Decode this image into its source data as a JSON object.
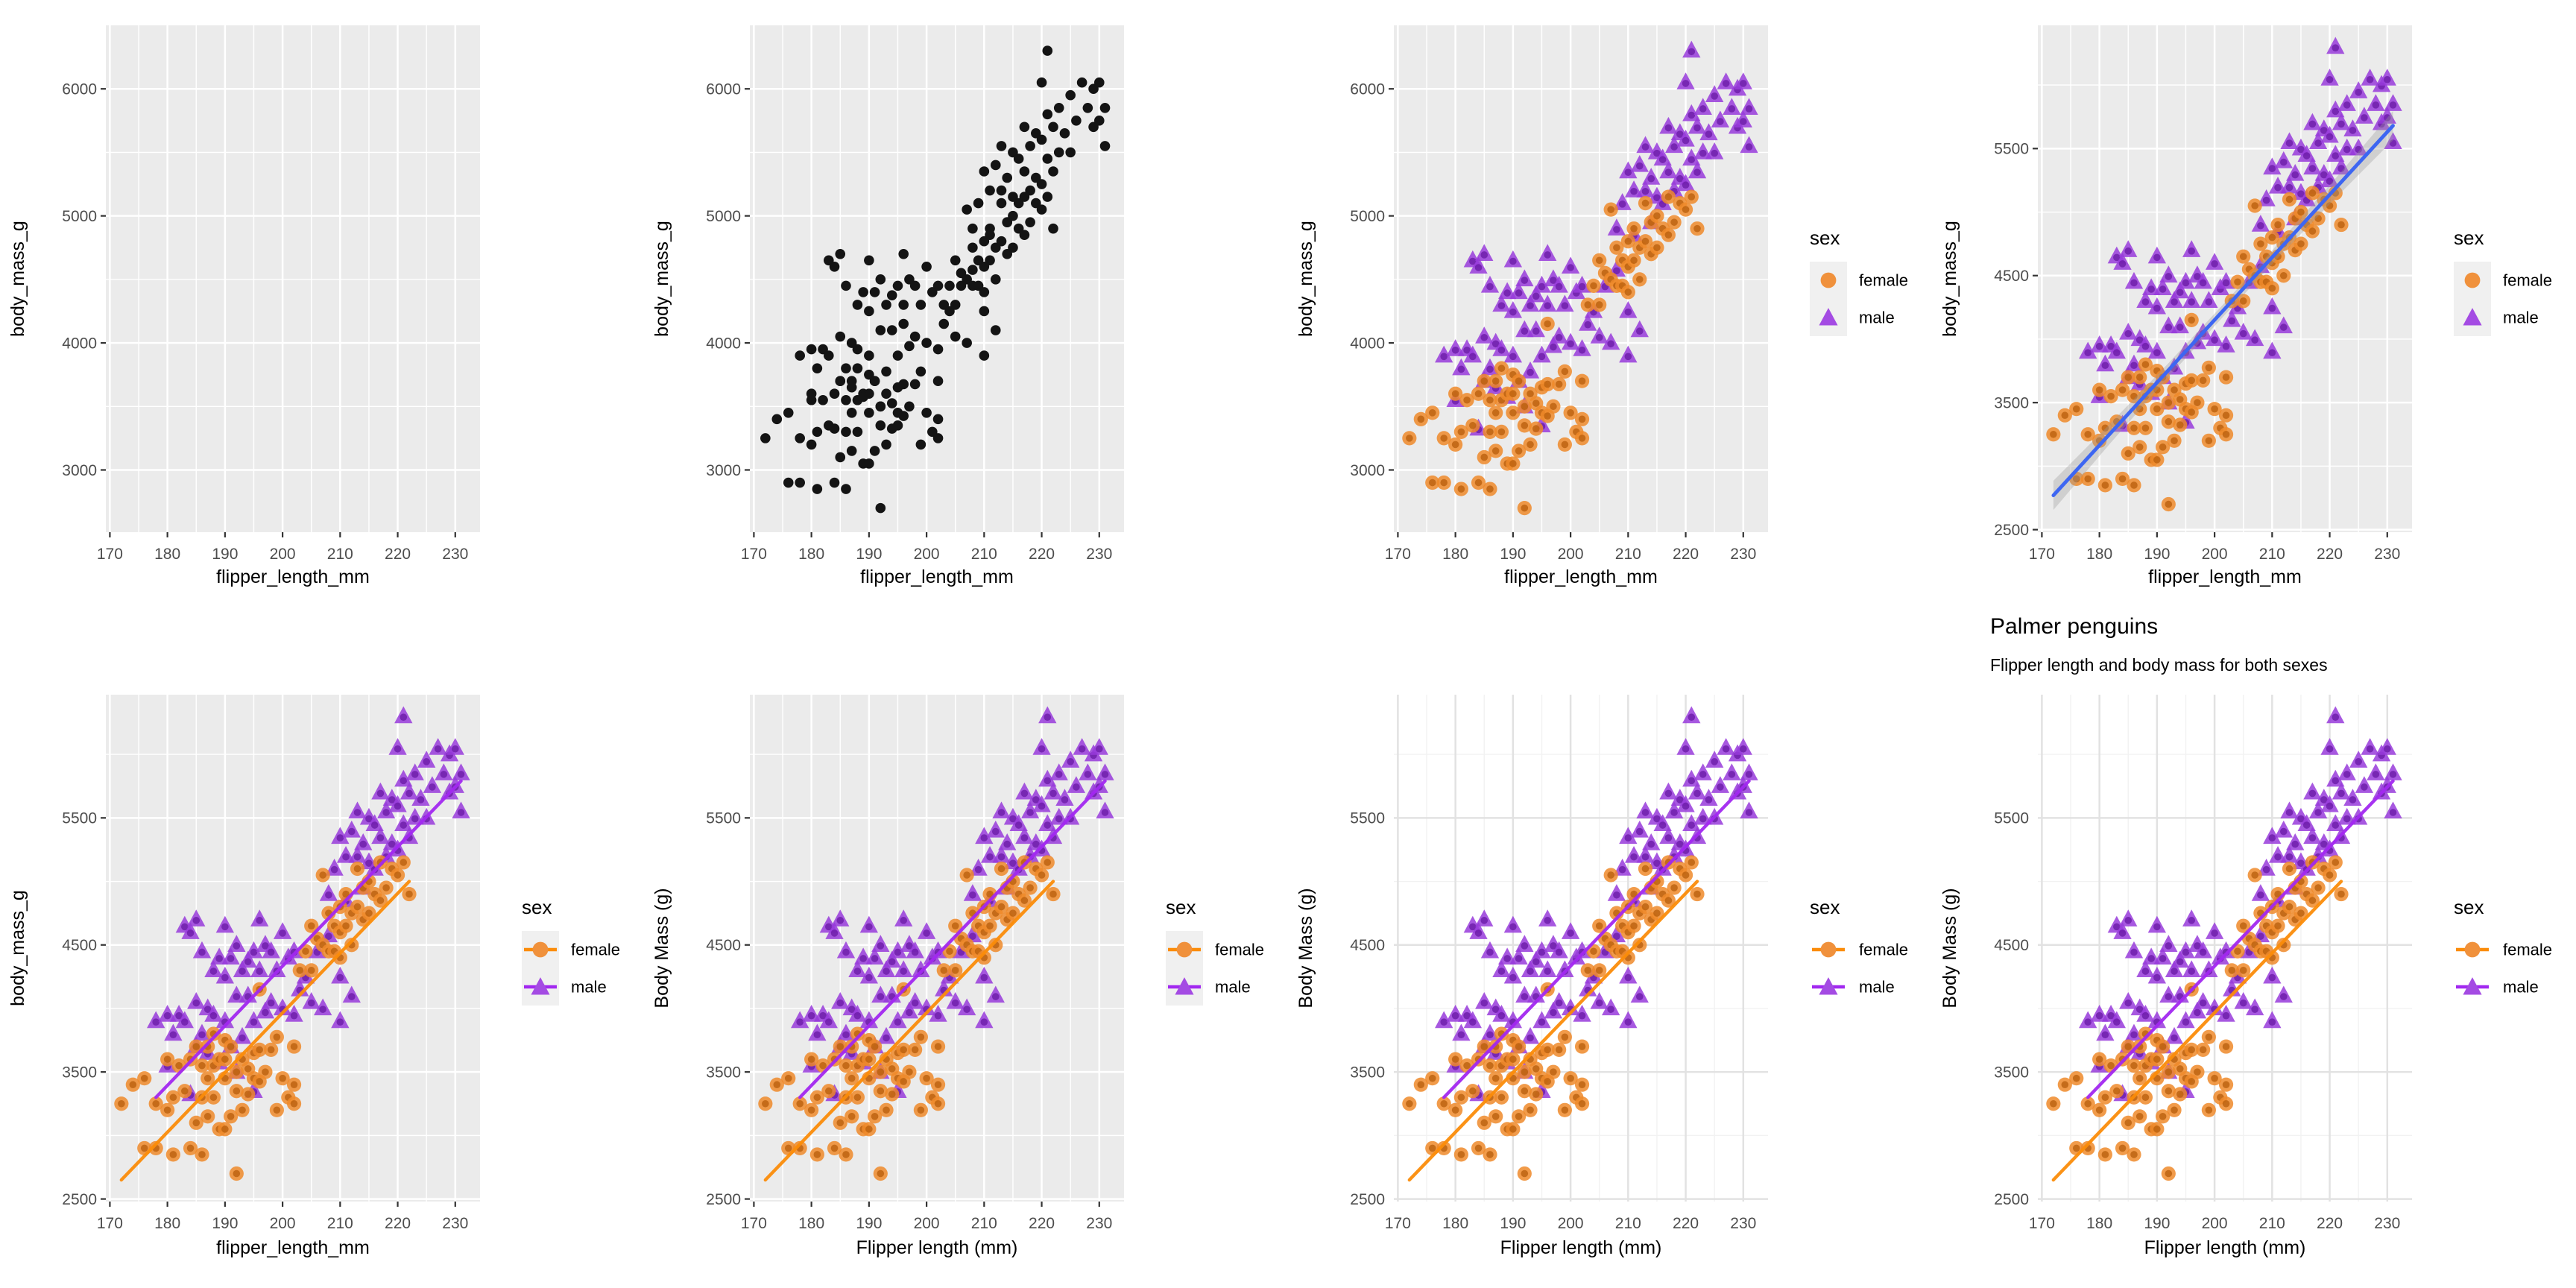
{
  "chart_data": {
    "type": "scatter",
    "description": "Grid of 8 ggplot-style scatter plots of Palmer penguins: flipper length vs body mass, built up step by step",
    "labels": {
      "x_raw": "flipper_length_mm",
      "y_raw": "body_mass_g",
      "x_nice": "Flipper length (mm)",
      "y_nice": "Body Mass (g)",
      "title": "Palmer penguins",
      "subtitle": "Flipper length and body mass for both sexes"
    },
    "legend": {
      "title": "sex",
      "items": [
        {
          "label": "female",
          "sex": "f"
        },
        {
          "label": "male",
          "sex": "m"
        }
      ]
    },
    "axes": {
      "x": {
        "domain": [
          169.3,
          234.3
        ],
        "ticks": [
          170,
          180,
          190,
          200,
          210,
          220,
          230
        ],
        "minor": [
          175,
          185,
          195,
          205,
          215,
          225
        ]
      },
      "y_a": {
        "domain": [
          2510,
          6500
        ],
        "ticks": [
          3000,
          4000,
          5000,
          6000
        ],
        "minor": [
          3500,
          4500,
          5500
        ]
      },
      "y_b": {
        "domain": [
          2480,
          6470
        ],
        "ticks": [
          2500,
          3500,
          4500,
          5500
        ],
        "minor": [
          3000,
          4000,
          5000,
          6000
        ]
      }
    },
    "smooth_lines": {
      "overall": {
        "x": [
          172,
          231
        ],
        "y": [
          2770,
          5680
        ]
      },
      "female": {
        "x": [
          172,
          222
        ],
        "y": [
          2650,
          5000
        ]
      },
      "male": {
        "x": [
          178,
          231
        ],
        "y": [
          3300,
          5790
        ]
      }
    },
    "band_halfwidth": {
      "mid": 48,
      "edge": 115
    },
    "plots": [
      {
        "name": "plot-1-empty",
        "col": 0,
        "row": 0,
        "theme": "gray",
        "points": "none",
        "smooth": "none",
        "legend": "none",
        "x_label_key": "x_raw",
        "y_label_key": "y_raw",
        "y_scale": "y_a"
      },
      {
        "name": "plot-2-points",
        "col": 1,
        "row": 0,
        "theme": "gray",
        "points": "black",
        "smooth": "none",
        "legend": "none",
        "x_label_key": "x_raw",
        "y_label_key": "y_raw",
        "y_scale": "y_a"
      },
      {
        "name": "plot-3-color-by-sex",
        "col": 2,
        "row": 0,
        "theme": "gray",
        "points": "sex",
        "smooth": "none",
        "legend": "point",
        "x_label_key": "x_raw",
        "y_label_key": "y_raw",
        "y_scale": "y_a"
      },
      {
        "name": "plot-4-overall-smooth",
        "col": 3,
        "row": 0,
        "theme": "gray",
        "points": "sex",
        "smooth": "overall",
        "legend": "point",
        "x_label_key": "x_raw",
        "y_label_key": "y_raw",
        "y_scale": "y_b"
      },
      {
        "name": "plot-5-smooth-by-sex",
        "col": 0,
        "row": 1,
        "theme": "gray",
        "points": "sex",
        "smooth": "by_sex",
        "legend": "point_line",
        "x_label_key": "x_raw",
        "y_label_key": "y_raw",
        "y_scale": "y_b"
      },
      {
        "name": "plot-6-nice-labels",
        "col": 1,
        "row": 1,
        "theme": "gray",
        "points": "sex",
        "smooth": "by_sex",
        "legend": "point_line",
        "x_label_key": "x_nice",
        "y_label_key": "y_nice",
        "y_scale": "y_b"
      },
      {
        "name": "plot-7-theme-minimal",
        "col": 2,
        "row": 1,
        "theme": "minimal",
        "points": "sex",
        "smooth": "by_sex",
        "legend": "point_line",
        "x_label_key": "x_nice",
        "y_label_key": "y_nice",
        "y_scale": "y_b"
      },
      {
        "name": "plot-8-titled",
        "col": 3,
        "row": 1,
        "theme": "minimal",
        "points": "sex",
        "smooth": "by_sex",
        "legend": "point_line",
        "x_label_key": "x_nice",
        "y_label_key": "y_nice",
        "y_scale": "y_b",
        "has_title": true
      }
    ],
    "colors": {
      "page_bg": "#FFFFFF",
      "panel_gray": "#EBEBEB",
      "grid_white": "#FFFFFF",
      "minimal_major": "#E2E2E2",
      "minimal_minor": "#F2F2F2",
      "tick_label": "#4D4D4D",
      "tick_mark": "#333333",
      "axis_title": "#000000",
      "black_point": "#141414",
      "female_fill": "#EE8A2A",
      "female_core": "#BA600E",
      "female_line": "#FB8C0A",
      "female_legend": "#F0913C",
      "male_fill": "#983BDB",
      "male_core": "#6B1CA8",
      "male_line": "#A228F0",
      "male_legend": "#A44BE3",
      "smooth_blue": "#3D66F2",
      "band_gray": "#9A9A9A",
      "legend_key_bg": "#F0F0F0"
    },
    "points": [
      [
        172,
        3250,
        "f"
      ],
      [
        174,
        3400,
        "f"
      ],
      [
        176,
        3450,
        "f"
      ],
      [
        176,
        2900,
        "f"
      ],
      [
        178,
        3250,
        "f"
      ],
      [
        178,
        2900,
        "f"
      ],
      [
        180,
        3600,
        "f"
      ],
      [
        180,
        3200,
        "f"
      ],
      [
        181,
        3300,
        "f"
      ],
      [
        181,
        2850,
        "f"
      ],
      [
        182,
        3550,
        "f"
      ],
      [
        183,
        3350,
        "f"
      ],
      [
        184,
        3600,
        "f"
      ],
      [
        184,
        2900,
        "f"
      ],
      [
        185,
        3700,
        "f"
      ],
      [
        185,
        3100,
        "f"
      ],
      [
        186,
        3550,
        "f"
      ],
      [
        186,
        3300,
        "f"
      ],
      [
        186,
        2850,
        "f"
      ],
      [
        187,
        3700,
        "f"
      ],
      [
        187,
        3450,
        "f"
      ],
      [
        187,
        3150,
        "f"
      ],
      [
        188,
        3800,
        "f"
      ],
      [
        188,
        3550,
        "f"
      ],
      [
        188,
        3300,
        "f"
      ],
      [
        189,
        3600,
        "f"
      ],
      [
        189,
        3050,
        "f"
      ],
      [
        190,
        3750,
        "f"
      ],
      [
        190,
        3600,
        "f"
      ],
      [
        190,
        3450,
        "f"
      ],
      [
        190,
        3050,
        "f"
      ],
      [
        191,
        3700,
        "f"
      ],
      [
        191,
        3150,
        "f"
      ],
      [
        192,
        3500,
        "f"
      ],
      [
        192,
        3350,
        "f"
      ],
      [
        192,
        2700,
        "f"
      ],
      [
        193,
        3600,
        "f"
      ],
      [
        193,
        3200,
        "f"
      ],
      [
        194,
        3525,
        "f"
      ],
      [
        194,
        3325,
        "f"
      ],
      [
        195,
        3650,
        "f"
      ],
      [
        195,
        3450,
        "f"
      ],
      [
        196,
        4150,
        "f"
      ],
      [
        196,
        3675,
        "f"
      ],
      [
        196,
        3425,
        "f"
      ],
      [
        197,
        3500,
        "f"
      ],
      [
        198,
        3675,
        "f"
      ],
      [
        199,
        3775,
        "f"
      ],
      [
        199,
        3200,
        "f"
      ],
      [
        200,
        3450,
        "f"
      ],
      [
        201,
        3300,
        "f"
      ],
      [
        202,
        3700,
        "f"
      ],
      [
        202,
        3400,
        "f"
      ],
      [
        202,
        3250,
        "f"
      ],
      [
        203,
        4300,
        "f"
      ],
      [
        204,
        4450,
        "f"
      ],
      [
        205,
        4650,
        "f"
      ],
      [
        205,
        4300,
        "f"
      ],
      [
        206,
        4550,
        "f"
      ],
      [
        207,
        5050,
        "f"
      ],
      [
        207,
        4500,
        "f"
      ],
      [
        208,
        4750,
        "f"
      ],
      [
        208,
        4450,
        "f"
      ],
      [
        209,
        4650,
        "f"
      ],
      [
        209,
        4450,
        "f"
      ],
      [
        210,
        4800,
        "f"
      ],
      [
        210,
        4600,
        "f"
      ],
      [
        210,
        4400,
        "f"
      ],
      [
        211,
        4900,
        "f"
      ],
      [
        211,
        4650,
        "f"
      ],
      [
        212,
        4750,
        "f"
      ],
      [
        212,
        4500,
        "f"
      ],
      [
        213,
        5100,
        "f"
      ],
      [
        213,
        4800,
        "f"
      ],
      [
        214,
        4950,
        "f"
      ],
      [
        214,
        4700,
        "f"
      ],
      [
        215,
        5000,
        "f"
      ],
      [
        215,
        4750,
        "f"
      ],
      [
        216,
        4900,
        "f"
      ],
      [
        217,
        5150,
        "f"
      ],
      [
        217,
        4850,
        "f"
      ],
      [
        218,
        4950,
        "f"
      ],
      [
        219,
        5100,
        "f"
      ],
      [
        220,
        5050,
        "f"
      ],
      [
        221,
        5150,
        "f"
      ],
      [
        222,
        4900,
        "f"
      ],
      [
        178,
        3900,
        "m"
      ],
      [
        180,
        3950,
        "m"
      ],
      [
        180,
        3550,
        "m"
      ],
      [
        181,
        3800,
        "m"
      ],
      [
        182,
        3950,
        "m"
      ],
      [
        183,
        4650,
        "m"
      ],
      [
        183,
        3900,
        "m"
      ],
      [
        184,
        4600,
        "m"
      ],
      [
        184,
        3325,
        "m"
      ],
      [
        185,
        4700,
        "m"
      ],
      [
        185,
        4050,
        "m"
      ],
      [
        185,
        3700,
        "m"
      ],
      [
        186,
        4450,
        "m"
      ],
      [
        186,
        3800,
        "m"
      ],
      [
        187,
        4000,
        "m"
      ],
      [
        187,
        3650,
        "m"
      ],
      [
        188,
        4300,
        "m"
      ],
      [
        188,
        3950,
        "m"
      ],
      [
        189,
        4400,
        "m"
      ],
      [
        189,
        3575,
        "m"
      ],
      [
        190,
        4650,
        "m"
      ],
      [
        190,
        4250,
        "m"
      ],
      [
        190,
        3900,
        "m"
      ],
      [
        191,
        4400,
        "m"
      ],
      [
        191,
        3700,
        "m"
      ],
      [
        192,
        4500,
        "m"
      ],
      [
        192,
        4100,
        "m"
      ],
      [
        192,
        3500,
        "m"
      ],
      [
        193,
        4300,
        "m"
      ],
      [
        193,
        3775,
        "m"
      ],
      [
        194,
        4375,
        "m"
      ],
      [
        194,
        4100,
        "m"
      ],
      [
        195,
        4450,
        "m"
      ],
      [
        195,
        3900,
        "m"
      ],
      [
        195,
        3350,
        "m"
      ],
      [
        196,
        4700,
        "m"
      ],
      [
        196,
        4300,
        "m"
      ],
      [
        197,
        4500,
        "m"
      ],
      [
        197,
        3975,
        "m"
      ],
      [
        198,
        4450,
        "m"
      ],
      [
        198,
        4050,
        "m"
      ],
      [
        199,
        4300,
        "m"
      ],
      [
        200,
        4600,
        "m"
      ],
      [
        200,
        4000,
        "m"
      ],
      [
        201,
        4400,
        "m"
      ],
      [
        202,
        4450,
        "m"
      ],
      [
        202,
        3950,
        "m"
      ],
      [
        203,
        4150,
        "m"
      ],
      [
        204,
        4250,
        "m"
      ],
      [
        205,
        4050,
        "m"
      ],
      [
        206,
        4450,
        "m"
      ],
      [
        207,
        4000,
        "m"
      ],
      [
        208,
        4575,
        "m"
      ],
      [
        210,
        4250,
        "m"
      ],
      [
        210,
        3900,
        "m"
      ],
      [
        212,
        4100,
        "m"
      ],
      [
        208,
        4900,
        "m"
      ],
      [
        209,
        5100,
        "m"
      ],
      [
        210,
        5350,
        "m"
      ],
      [
        211,
        5200,
        "m"
      ],
      [
        211,
        4850,
        "m"
      ],
      [
        212,
        5400,
        "m"
      ],
      [
        213,
        5550,
        "m"
      ],
      [
        213,
        5200,
        "m"
      ],
      [
        214,
        5300,
        "m"
      ],
      [
        214,
        4950,
        "m"
      ],
      [
        215,
        5500,
        "m"
      ],
      [
        215,
        5150,
        "m"
      ],
      [
        216,
        5450,
        "m"
      ],
      [
        216,
        5100,
        "m"
      ],
      [
        217,
        5700,
        "m"
      ],
      [
        217,
        5350,
        "m"
      ],
      [
        218,
        5550,
        "m"
      ],
      [
        218,
        5200,
        "m"
      ],
      [
        219,
        5650,
        "m"
      ],
      [
        219,
        5300,
        "m"
      ],
      [
        220,
        6050,
        "m"
      ],
      [
        220,
        5600,
        "m"
      ],
      [
        220,
        5250,
        "m"
      ],
      [
        221,
        6300,
        "m"
      ],
      [
        221,
        5800,
        "m"
      ],
      [
        221,
        5450,
        "m"
      ],
      [
        222,
        5700,
        "m"
      ],
      [
        222,
        5350,
        "m"
      ],
      [
        223,
        5850,
        "m"
      ],
      [
        223,
        5500,
        "m"
      ],
      [
        224,
        5650,
        "m"
      ],
      [
        225,
        5950,
        "m"
      ],
      [
        225,
        5500,
        "m"
      ],
      [
        226,
        5750,
        "m"
      ],
      [
        227,
        6050,
        "m"
      ],
      [
        228,
        5850,
        "m"
      ],
      [
        229,
        6000,
        "m"
      ],
      [
        229,
        5700,
        "m"
      ],
      [
        230,
        6050,
        "m"
      ],
      [
        230,
        5750,
        "m"
      ],
      [
        231,
        5850,
        "m"
      ],
      [
        231,
        5550,
        "m"
      ]
    ]
  }
}
